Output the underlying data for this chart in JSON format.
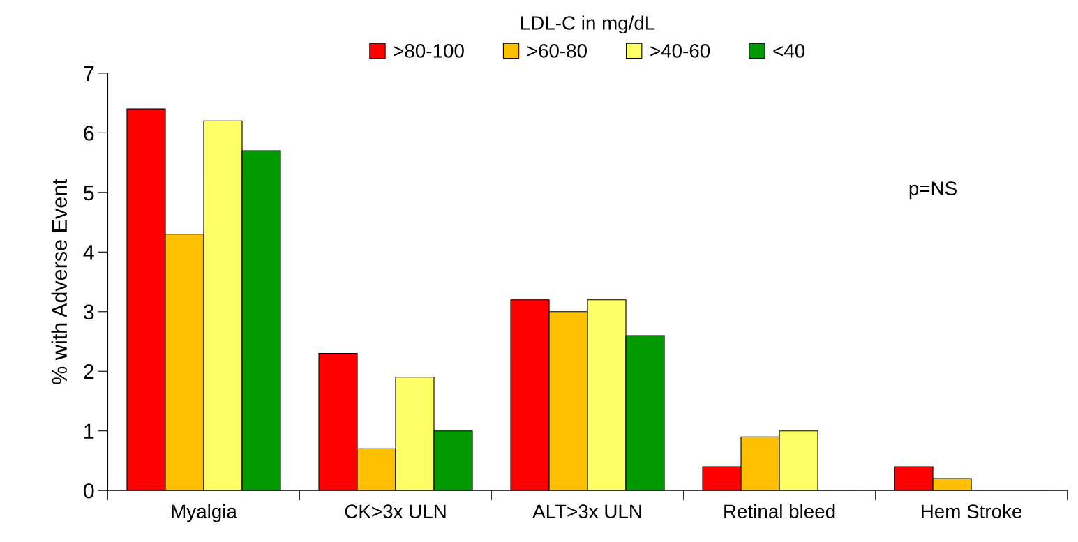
{
  "chart_data": {
    "type": "bar",
    "ylabel": "% with Adverse Event",
    "legend_title": "LDL-C in mg/dL",
    "legend": "top",
    "categories": [
      "Myalgia",
      "CK>3x ULN",
      "ALT>3x ULN",
      "Retinal bleed",
      "Hem Stroke"
    ],
    "series": [
      {
        "name": ">80-100",
        "color": "#ff0000",
        "values": [
          6.4,
          2.3,
          3.2,
          0.4,
          0.4
        ]
      },
      {
        "name": ">60-80",
        "color": "#ffc000",
        "values": [
          4.3,
          0.7,
          3.0,
          0.9,
          0.2
        ]
      },
      {
        "name": ">40-60",
        "color": "#ffff66",
        "values": [
          6.2,
          1.9,
          3.2,
          1.0,
          0
        ]
      },
      {
        "name": "<40",
        "color": "#009900",
        "values": [
          5.7,
          1.0,
          2.6,
          0,
          0
        ]
      }
    ],
    "ylim": [
      0,
      7
    ],
    "yticks": [
      0,
      1,
      2,
      3,
      4,
      5,
      6,
      7
    ],
    "grid": false,
    "annotations": [
      "p=NS"
    ]
  }
}
